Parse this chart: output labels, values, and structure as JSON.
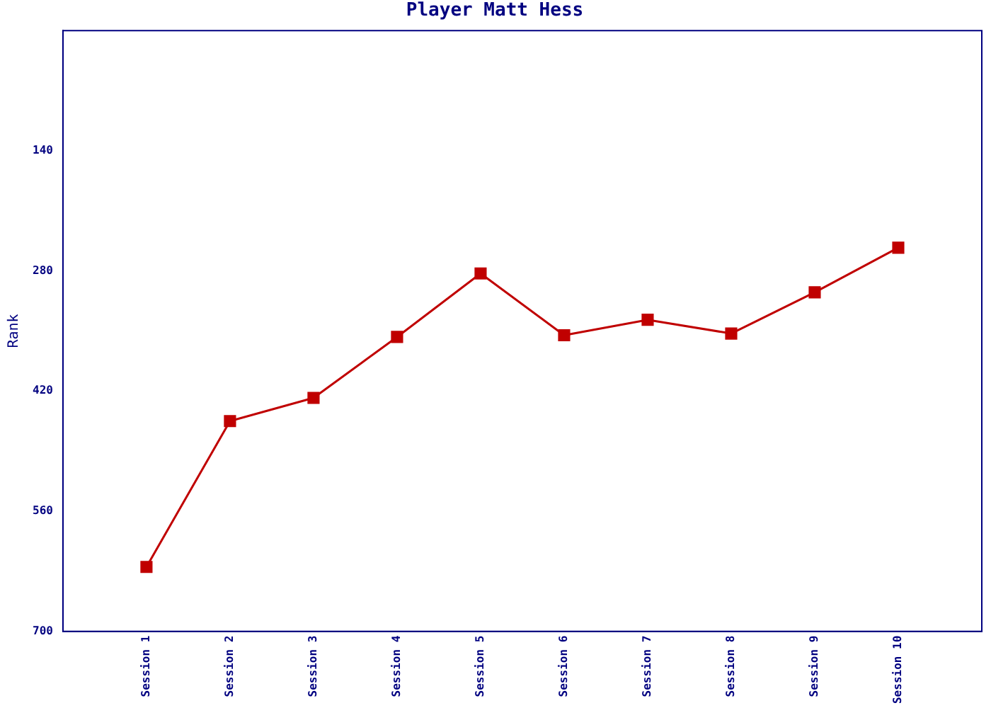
{
  "chart_data": {
    "type": "line",
    "title": "Player Matt Hess",
    "ylabel": "Rank",
    "categories": [
      "Session 1",
      "Session 2",
      "Session 3",
      "Session 4",
      "Session 5",
      "Session 6",
      "Session 7",
      "Session 8",
      "Session 9",
      "Session 10"
    ],
    "series": [
      {
        "color": "#c00000",
        "values": [
          625,
          455,
          428,
          357,
          283,
          355,
          337,
          353,
          305,
          253
        ]
      }
    ],
    "ylim": [
      700,
      0
    ],
    "yticks": [
      140,
      280,
      420,
      560,
      700
    ],
    "grid": false,
    "legend": false,
    "marker": "square",
    "line_style": "solid"
  }
}
